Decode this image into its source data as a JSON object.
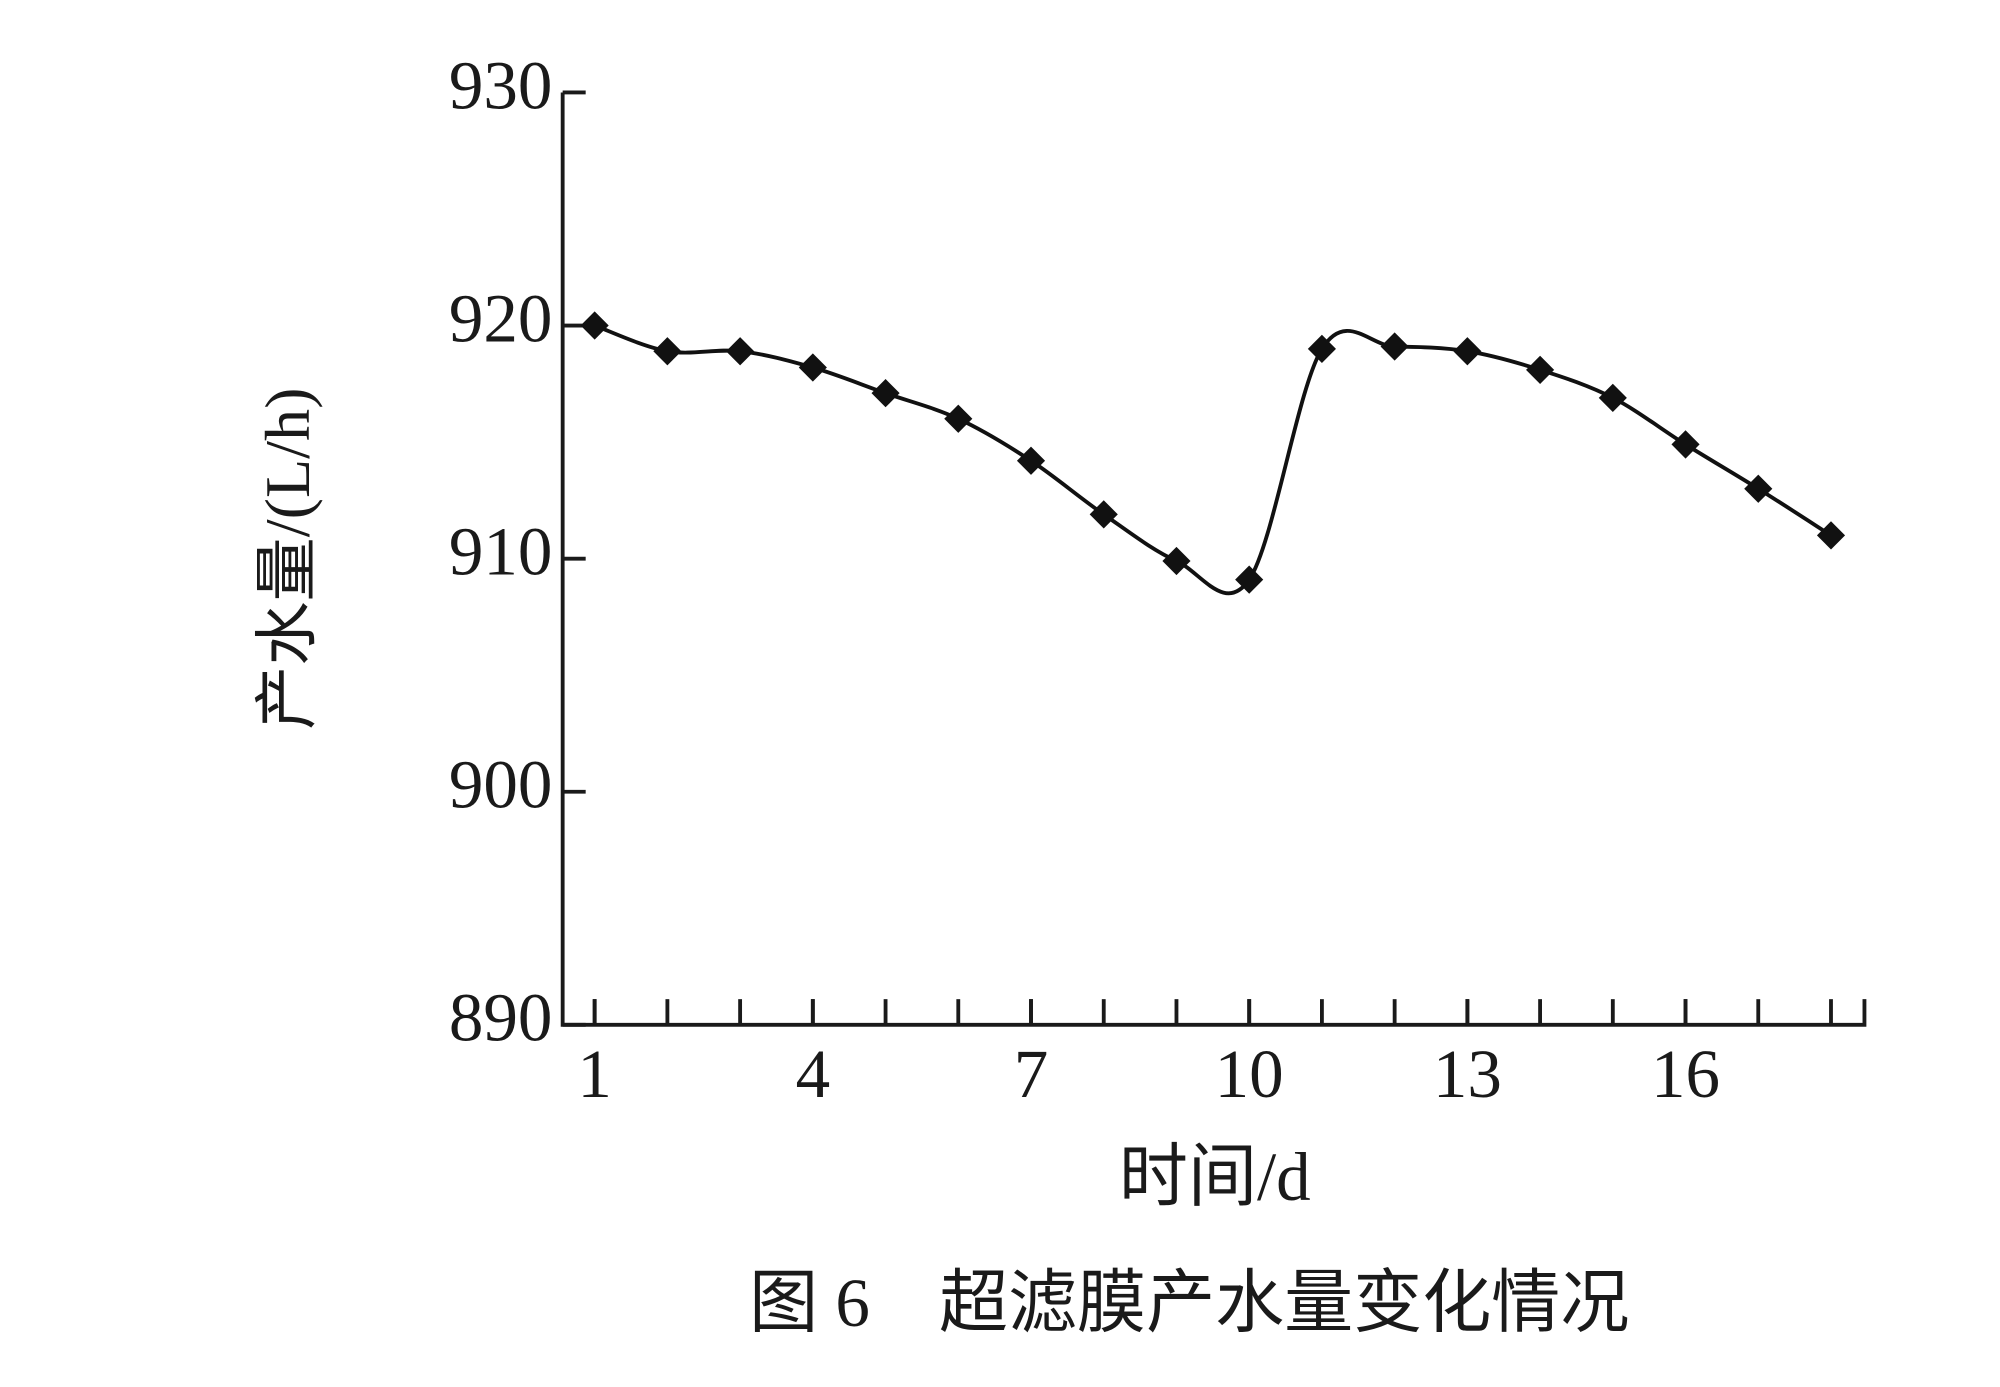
{
  "chart_data": {
    "type": "line",
    "title": "图 6　超滤膜产水量变化情况",
    "x_label": "时间/d",
    "y_label": "产水量/(L/h)",
    "x": [
      1,
      2,
      3,
      4,
      5,
      6,
      7,
      8,
      9,
      10,
      11,
      12,
      13,
      14,
      15,
      16,
      17,
      18
    ],
    "series": [
      {
        "name": "产水量",
        "color": "#111111",
        "values": [
          920.0,
          918.9,
          918.9,
          918.2,
          917.1,
          916.0,
          914.2,
          911.9,
          909.9,
          909.1,
          919.0,
          919.1,
          918.9,
          918.1,
          916.9,
          914.9,
          913.0,
          911.0
        ]
      }
    ],
    "xlim": [
      0.56,
      18.46
    ],
    "xticks": [
      1,
      4,
      7,
      10,
      13,
      16
    ],
    "minor_tick_step": 1,
    "ylim": [
      890,
      930
    ],
    "yticks": [
      890,
      900,
      910,
      920,
      930
    ],
    "smooth": true,
    "marker": "diamond",
    "grid": false
  }
}
